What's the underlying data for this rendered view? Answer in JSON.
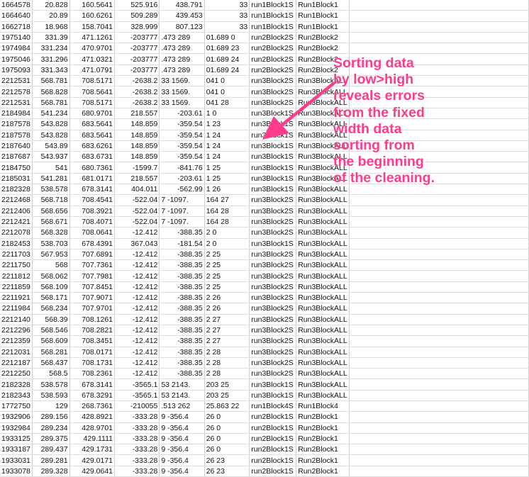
{
  "spreadsheet": {
    "rows": [
      [
        "1664578",
        "20.828",
        "160.5641",
        "525.916",
        "438.791",
        "33",
        "run1Block1S",
        "Run1Block1"
      ],
      [
        "1664640",
        "20.89",
        "160.6261",
        "509.289",
        "439.453",
        "33",
        "run1Block1S",
        "Run1Block1"
      ],
      [
        "1662718",
        "18.968",
        "158.7041",
        "328.999",
        "807.123",
        "33",
        "run1Block1S",
        "Run1Block1"
      ],
      [
        "1975140",
        "331.39",
        "471.1261",
        "-203777",
        ".473 289",
        "01.689 0",
        "run2Block2S",
        "Run2Block2"
      ],
      [
        "1974984",
        "331.234",
        "470.9701",
        "-203777",
        ".473 289",
        "01.689 23",
        "run2Block2S",
        "Run2Block2"
      ],
      [
        "1975046",
        "331.296",
        "471.0321",
        "-203777",
        ".473 289",
        "01.689 24",
        "run2Block2S",
        "Run2Block2"
      ],
      [
        "1975093",
        "331.343",
        "471.0791",
        "-203777",
        ".473 289",
        "01.689 24",
        "run2Block2S",
        "Run2Block2"
      ],
      [
        "2212531",
        "568.781",
        "708.5171",
        "-2638.2",
        "33 1569.",
        "041 0",
        "run3Block2S",
        "Run3BlockALL"
      ],
      [
        "2212578",
        "568.828",
        "708.5641",
        "-2638.2",
        "33 1569.",
        "041 0",
        "run3Block2S",
        "Run3BlockALL"
      ],
      [
        "2212531",
        "568.781",
        "708.5171",
        "-2638.2",
        "33 1569.",
        "041 28",
        "run3Block2S",
        "Run3BlockALL"
      ],
      [
        "2184984",
        "541.234",
        "680.9701",
        "218.557",
        "-203.61",
        "1 0",
        "run3Block1S",
        "Run3BlockALL"
      ],
      [
        "2187578",
        "543.828",
        "683.5641",
        "148.859",
        "-359.54",
        "1 23",
        "run3Block1S",
        "Run3BlockALL"
      ],
      [
        "2187578",
        "543.828",
        "683.5641",
        "148.859",
        "-359.54",
        "1 24",
        "run3Block1S",
        "Run3BlockALL"
      ],
      [
        "2187640",
        "543.89",
        "683.6261",
        "148.859",
        "-359.54",
        "1 24",
        "run3Block1S",
        "Run3BlockALL"
      ],
      [
        "2187687",
        "543.937",
        "683.6731",
        "148.859",
        "-359.54",
        "1 24",
        "run3Block1S",
        "Run3BlockALL"
      ],
      [
        "2184750",
        "541",
        "680.7361",
        "-1599.7",
        "-841.76",
        "1 25",
        "run3Block1S",
        "Run3BlockALL"
      ],
      [
        "2185031",
        "541.281",
        "681.0171",
        "218.557",
        "-203.61",
        "1 25",
        "run3Block1S",
        "Run3BlockALL"
      ],
      [
        "2182328",
        "538.578",
        "678.3141",
        "404.011",
        "-562.99",
        "1 26",
        "run3Block1S",
        "Run3BlockALL"
      ],
      [
        "2212468",
        "568.718",
        "708.4541",
        "-522.04",
        "7 -1097.",
        "164 27",
        "run3Block2S",
        "Run3BlockALL"
      ],
      [
        "2212406",
        "568.656",
        "708.3921",
        "-522.04",
        "7 -1097.",
        "164 28",
        "run3Block2S",
        "Run3BlockALL"
      ],
      [
        "2212421",
        "568.671",
        "708.4071",
        "-522.04",
        "7 -1097.",
        "164 28",
        "run3Block2S",
        "Run3BlockALL"
      ],
      [
        "2212078",
        "568.328",
        "708.0641",
        "-12.412",
        "-388.35",
        "2 0",
        "run3Block2S",
        "Run3BlockALL"
      ],
      [
        "2182453",
        "538.703",
        "678.4391",
        "367.043",
        "-181.54",
        "2 0",
        "run3Block1S",
        "Run3BlockALL"
      ],
      [
        "2211703",
        "567.953",
        "707.6891",
        "-12.412",
        "-388.35",
        "2 25",
        "run3Block2S",
        "Run3BlockALL"
      ],
      [
        "2211750",
        "568",
        "707.7361",
        "-12.412",
        "-388.35",
        "2 25",
        "run3Block2S",
        "Run3BlockALL"
      ],
      [
        "2211812",
        "568.062",
        "707.7981",
        "-12.412",
        "-388.35",
        "2 25",
        "run3Block2S",
        "Run3BlockALL"
      ],
      [
        "2211859",
        "568.109",
        "707.8451",
        "-12.412",
        "-388.35",
        "2 25",
        "run3Block2S",
        "Run3BlockALL"
      ],
      [
        "2211921",
        "568.171",
        "707.9071",
        "-12.412",
        "-388.35",
        "2 26",
        "run3Block2S",
        "Run3BlockALL"
      ],
      [
        "2211984",
        "568.234",
        "707.9701",
        "-12.412",
        "-388.35",
        "2 26",
        "run3Block2S",
        "Run3BlockALL"
      ],
      [
        "2212140",
        "568.39",
        "708.1261",
        "-12.412",
        "-388.35",
        "2 27",
        "run3Block2S",
        "Run3BlockALL"
      ],
      [
        "2212296",
        "568.546",
        "708.2821",
        "-12.412",
        "-388.35",
        "2 27",
        "run3Block2S",
        "Run3BlockALL"
      ],
      [
        "2212359",
        "568.609",
        "708.3451",
        "-12.412",
        "-388.35",
        "2 27",
        "run3Block2S",
        "Run3BlockALL"
      ],
      [
        "2212031",
        "568.281",
        "708.0171",
        "-12.412",
        "-388.35",
        "2 28",
        "run3Block2S",
        "Run3BlockALL"
      ],
      [
        "2212187",
        "568.437",
        "708.1731",
        "-12.412",
        "-388.35",
        "2 28",
        "run3Block2S",
        "Run3BlockALL"
      ],
      [
        "2212250",
        "568.5",
        "708.2361",
        "-12.412",
        "-388.35",
        "2 28",
        "run3Block2S",
        "Run3BlockALL"
      ],
      [
        "2182328",
        "538.578",
        "678.3141",
        "-3565.1",
        "53 2143.",
        "203 25",
        "run3Block1S",
        "Run3BlockALL"
      ],
      [
        "2182343",
        "538.593",
        "678.3291",
        "-3565.1",
        "53 2143.",
        "203 25",
        "run3Block1S",
        "Run3BlockALL"
      ],
      [
        "1772750",
        "129",
        "268.7361",
        "-210055",
        ".513 262",
        "25.863 22",
        "run1Block4S",
        "Run1Block4"
      ],
      [
        "1932906",
        "289.156",
        "428.8921",
        "-333.28",
        "9 -356.4",
        "26 0",
        "run2Block1S",
        "Run2Block1"
      ],
      [
        "1932984",
        "289.234",
        "428.9701",
        "-333.28",
        "9 -356.4",
        "26 0",
        "run2Block1S",
        "Run2Block1"
      ],
      [
        "1933125",
        "289.375",
        "429.1111",
        "-333.28",
        "9 -356.4",
        "26 0",
        "run2Block1S",
        "Run2Block1"
      ],
      [
        "1933187",
        "289.437",
        "429.1731",
        "-333.28",
        "9 -356.4",
        "26 0",
        "run2Block1S",
        "Run2Block1"
      ],
      [
        "1933031",
        "289.281",
        "429.0171",
        "-333.28",
        "9 -356.4",
        "26 23",
        "run2Block1S",
        "Run2Block1"
      ],
      [
        "1933078",
        "289.328",
        "429.0641",
        "-333.28",
        "9 -356.4",
        "26 23",
        "run2Block1S",
        "Run2Block1"
      ]
    ]
  },
  "annotation": {
    "lines": [
      "Sorting data",
      "by low>high",
      "reveals errors",
      "from the fixed",
      "width data",
      "sorting from",
      "the beginning",
      "of the cleaning."
    ],
    "color": "#ff3c8c"
  }
}
